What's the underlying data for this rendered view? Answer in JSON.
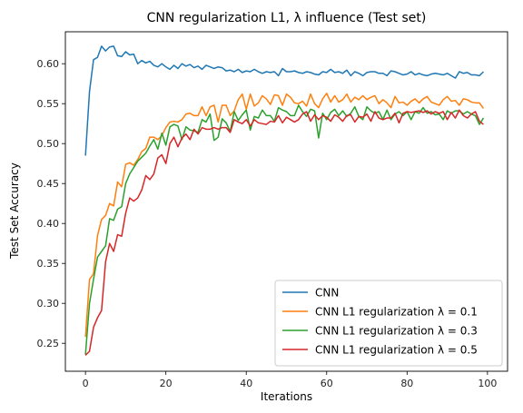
{
  "chart_data": {
    "type": "line",
    "title": "CNN regularization L1, λ influence (Test set)",
    "xlabel": "Iterations",
    "ylabel": "Test Set Accuracy",
    "xlim": [
      -5,
      105
    ],
    "ylim": [
      0.215,
      0.64
    ],
    "xticks": [
      0,
      20,
      40,
      60,
      80,
      100
    ],
    "yticks": [
      0.25,
      0.3,
      0.35,
      0.4,
      0.45,
      0.5,
      0.55,
      0.6
    ],
    "grid": false,
    "legend_position": "bottom-right",
    "x": [
      0,
      1,
      2,
      3,
      4,
      5,
      6,
      7,
      8,
      9,
      10,
      11,
      12,
      13,
      14,
      15,
      16,
      17,
      18,
      19,
      20,
      21,
      22,
      23,
      24,
      25,
      26,
      27,
      28,
      29,
      30,
      31,
      32,
      33,
      34,
      35,
      36,
      37,
      38,
      39,
      40,
      41,
      42,
      43,
      44,
      45,
      46,
      47,
      48,
      49,
      50,
      51,
      52,
      53,
      54,
      55,
      56,
      57,
      58,
      59,
      60,
      61,
      62,
      63,
      64,
      65,
      66,
      67,
      68,
      69,
      70,
      71,
      72,
      73,
      74,
      75,
      76,
      77,
      78,
      79,
      80,
      81,
      82,
      83,
      84,
      85,
      86,
      87,
      88,
      89,
      90,
      91,
      92,
      93,
      94,
      95,
      96,
      97,
      98,
      99
    ],
    "series": [
      {
        "name": "CNN",
        "color": "#1f77b4",
        "values": [
          0.485,
          0.565,
          0.605,
          0.608,
          0.622,
          0.616,
          0.621,
          0.622,
          0.61,
          0.609,
          0.615,
          0.611,
          0.612,
          0.6,
          0.604,
          0.601,
          0.603,
          0.598,
          0.596,
          0.6,
          0.596,
          0.593,
          0.598,
          0.594,
          0.6,
          0.597,
          0.599,
          0.595,
          0.597,
          0.593,
          0.598,
          0.596,
          0.594,
          0.596,
          0.595,
          0.591,
          0.592,
          0.59,
          0.593,
          0.589,
          0.591,
          0.59,
          0.593,
          0.59,
          0.588,
          0.59,
          0.589,
          0.59,
          0.585,
          0.594,
          0.59,
          0.59,
          0.591,
          0.589,
          0.588,
          0.59,
          0.589,
          0.587,
          0.586,
          0.59,
          0.589,
          0.593,
          0.589,
          0.59,
          0.588,
          0.592,
          0.585,
          0.59,
          0.588,
          0.585,
          0.589,
          0.59,
          0.59,
          0.588,
          0.588,
          0.585,
          0.591,
          0.59,
          0.588,
          0.586,
          0.587,
          0.59,
          0.586,
          0.588,
          0.586,
          0.585,
          0.587,
          0.588,
          0.587,
          0.586,
          0.588,
          0.585,
          0.582,
          0.59,
          0.588,
          0.589,
          0.586,
          0.586,
          0.585,
          0.59
        ]
      },
      {
        "name": "CNN L1 regularization λ = 0.1",
        "color": "#ff7f0e",
        "values": [
          0.258,
          0.33,
          0.337,
          0.385,
          0.405,
          0.41,
          0.425,
          0.422,
          0.452,
          0.446,
          0.474,
          0.476,
          0.473,
          0.48,
          0.49,
          0.494,
          0.508,
          0.508,
          0.505,
          0.51,
          0.52,
          0.527,
          0.528,
          0.527,
          0.53,
          0.537,
          0.538,
          0.535,
          0.535,
          0.546,
          0.535,
          0.546,
          0.548,
          0.527,
          0.548,
          0.548,
          0.535,
          0.541,
          0.555,
          0.562,
          0.543,
          0.562,
          0.547,
          0.551,
          0.56,
          0.556,
          0.549,
          0.561,
          0.56,
          0.548,
          0.562,
          0.558,
          0.551,
          0.55,
          0.553,
          0.547,
          0.562,
          0.55,
          0.545,
          0.556,
          0.563,
          0.552,
          0.56,
          0.552,
          0.555,
          0.562,
          0.552,
          0.558,
          0.555,
          0.56,
          0.555,
          0.558,
          0.56,
          0.55,
          0.555,
          0.551,
          0.545,
          0.559,
          0.551,
          0.552,
          0.548,
          0.553,
          0.556,
          0.551,
          0.556,
          0.559,
          0.552,
          0.55,
          0.548,
          0.555,
          0.559,
          0.553,
          0.554,
          0.548,
          0.556,
          0.555,
          0.552,
          0.551,
          0.551,
          0.544
        ]
      },
      {
        "name": "CNN L1 regularization λ = 0.3",
        "color": "#2ca02c",
        "values": [
          0.236,
          0.3,
          0.33,
          0.358,
          0.365,
          0.372,
          0.406,
          0.404,
          0.418,
          0.421,
          0.45,
          0.462,
          0.47,
          0.478,
          0.483,
          0.488,
          0.497,
          0.505,
          0.493,
          0.513,
          0.498,
          0.521,
          0.524,
          0.522,
          0.505,
          0.521,
          0.517,
          0.516,
          0.514,
          0.53,
          0.527,
          0.537,
          0.504,
          0.508,
          0.531,
          0.526,
          0.515,
          0.54,
          0.529,
          0.536,
          0.542,
          0.517,
          0.534,
          0.532,
          0.542,
          0.535,
          0.535,
          0.528,
          0.545,
          0.542,
          0.54,
          0.535,
          0.535,
          0.548,
          0.54,
          0.534,
          0.543,
          0.541,
          0.507,
          0.538,
          0.53,
          0.539,
          0.543,
          0.535,
          0.541,
          0.534,
          0.538,
          0.546,
          0.534,
          0.53,
          0.546,
          0.541,
          0.538,
          0.54,
          0.53,
          0.542,
          0.53,
          0.537,
          0.54,
          0.535,
          0.54,
          0.53,
          0.54,
          0.538,
          0.545,
          0.538,
          0.54,
          0.536,
          0.537,
          0.53,
          0.541,
          0.538,
          0.541,
          0.541,
          0.537,
          0.54,
          0.537,
          0.535,
          0.524,
          0.532
        ]
      },
      {
        "name": "CNN L1 regularization λ = 0.5",
        "color": "#d62728",
        "values": [
          0.235,
          0.24,
          0.27,
          0.282,
          0.291,
          0.352,
          0.375,
          0.365,
          0.386,
          0.384,
          0.413,
          0.432,
          0.428,
          0.432,
          0.442,
          0.46,
          0.455,
          0.462,
          0.482,
          0.486,
          0.475,
          0.5,
          0.508,
          0.496,
          0.507,
          0.512,
          0.505,
          0.518,
          0.512,
          0.52,
          0.518,
          0.518,
          0.52,
          0.518,
          0.52,
          0.52,
          0.514,
          0.53,
          0.527,
          0.525,
          0.53,
          0.522,
          0.53,
          0.526,
          0.525,
          0.524,
          0.528,
          0.527,
          0.535,
          0.526,
          0.533,
          0.53,
          0.527,
          0.53,
          0.537,
          0.54,
          0.528,
          0.536,
          0.53,
          0.535,
          0.533,
          0.528,
          0.536,
          0.533,
          0.528,
          0.535,
          0.536,
          0.527,
          0.534,
          0.533,
          0.537,
          0.528,
          0.54,
          0.532,
          0.53,
          0.532,
          0.532,
          0.538,
          0.526,
          0.538,
          0.54,
          0.539,
          0.54,
          0.541,
          0.539,
          0.541,
          0.537,
          0.54,
          0.538,
          0.54,
          0.53,
          0.539,
          0.532,
          0.542,
          0.535,
          0.532,
          0.537,
          0.54,
          0.528,
          0.524
        ]
      }
    ]
  }
}
